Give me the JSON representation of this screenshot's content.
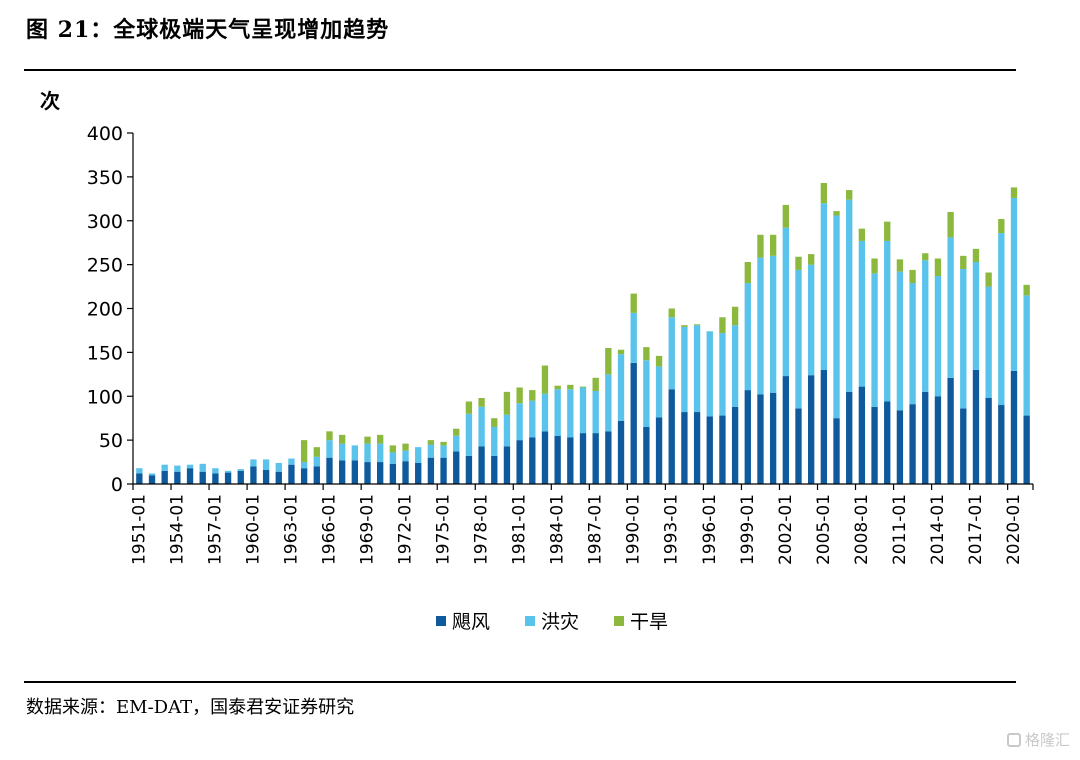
{
  "figure": {
    "title": "图 21：全球极端天气呈现增加趋势",
    "source": "数据来源：EM-DAT，国泰君安证券研究",
    "watermark": "格隆汇"
  },
  "colors": {
    "typhoon": "#0e5a9c",
    "flood": "#59c3ec",
    "drought": "#8cb83e"
  },
  "chart_data": {
    "type": "bar",
    "stacked": true,
    "ylabel": "次",
    "ylim": [
      0,
      400
    ],
    "yticks": [
      0,
      50,
      100,
      150,
      200,
      250,
      300,
      350,
      400
    ],
    "grid": false,
    "legend_position": "bottom",
    "x": [
      "1951-01",
      "1952-01",
      "1953-01",
      "1954-01",
      "1955-01",
      "1956-01",
      "1957-01",
      "1958-01",
      "1959-01",
      "1960-01",
      "1961-01",
      "1962-01",
      "1963-01",
      "1964-01",
      "1965-01",
      "1966-01",
      "1967-01",
      "1968-01",
      "1969-01",
      "1970-01",
      "1971-01",
      "1972-01",
      "1973-01",
      "1974-01",
      "1975-01",
      "1976-01",
      "1977-01",
      "1978-01",
      "1979-01",
      "1980-01",
      "1981-01",
      "1982-01",
      "1983-01",
      "1984-01",
      "1985-01",
      "1986-01",
      "1987-01",
      "1988-01",
      "1989-01",
      "1990-01",
      "1991-01",
      "1992-01",
      "1993-01",
      "1994-01",
      "1995-01",
      "1996-01",
      "1997-01",
      "1998-01",
      "1999-01",
      "2000-01",
      "2001-01",
      "2002-01",
      "2003-01",
      "2004-01",
      "2005-01",
      "2006-01",
      "2007-01",
      "2008-01",
      "2009-01",
      "2010-01",
      "2011-01",
      "2012-01",
      "2013-01",
      "2014-01",
      "2015-01",
      "2016-01",
      "2017-01",
      "2018-01",
      "2019-01",
      "2020-01",
      "2021-01"
    ],
    "xtick_labels": [
      "1951-01",
      "1954-01",
      "1957-01",
      "1960-01",
      "1963-01",
      "1966-01",
      "1969-01",
      "1972-01",
      "1975-01",
      "1978-01",
      "1981-01",
      "1984-01",
      "1987-01",
      "1990-01",
      "1993-01",
      "1996-01",
      "1999-01",
      "2002-01",
      "2005-01",
      "2008-01",
      "2011-01",
      "2014-01",
      "2017-01",
      "2020-01"
    ],
    "series": [
      {
        "name": "飓风",
        "values": [
          12,
          10,
          15,
          14,
          18,
          14,
          12,
          13,
          15,
          20,
          16,
          14,
          22,
          18,
          20,
          30,
          27,
          27,
          25,
          25,
          23,
          26,
          24,
          30,
          30,
          37,
          32,
          43,
          32,
          43,
          50,
          53,
          60,
          55,
          53,
          58,
          58,
          60,
          72,
          138,
          65,
          76,
          108,
          82,
          82,
          77,
          78,
          88,
          107,
          102,
          104,
          123,
          86,
          124,
          130,
          75,
          105,
          111,
          88,
          94,
          84,
          91,
          105,
          100,
          121,
          86,
          130,
          98,
          90,
          129,
          78
        ]
      },
      {
        "name": "洪灾",
        "values": [
          6,
          2,
          7,
          7,
          4,
          9,
          6,
          2,
          2,
          8,
          12,
          10,
          7,
          7,
          11,
          20,
          19,
          17,
          21,
          21,
          13,
          12,
          18,
          15,
          14,
          18,
          48,
          45,
          33,
          36,
          42,
          42,
          43,
          53,
          55,
          52,
          48,
          65,
          76,
          57,
          76,
          58,
          82,
          97,
          99,
          97,
          94,
          93,
          122,
          156,
          156,
          169,
          158,
          126,
          190,
          231,
          219,
          166,
          152,
          183,
          158,
          138,
          150,
          137,
          160,
          159,
          123,
          127,
          196,
          197,
          137
        ]
      },
      {
        "name": "干旱",
        "values": [
          0,
          0,
          0,
          0,
          0,
          0,
          0,
          0,
          0,
          0,
          0,
          0,
          0,
          25,
          11,
          10,
          10,
          0,
          8,
          10,
          8,
          8,
          0,
          5,
          4,
          8,
          14,
          10,
          10,
          26,
          18,
          12,
          32,
          4,
          5,
          1,
          15,
          30,
          5,
          22,
          15,
          12,
          10,
          2,
          1,
          0,
          18,
          21,
          24,
          26,
          24,
          26,
          15,
          12,
          23,
          5,
          11,
          14,
          17,
          22,
          14,
          15,
          8,
          20,
          29,
          15,
          15,
          16,
          16,
          12,
          12
        ]
      }
    ]
  }
}
